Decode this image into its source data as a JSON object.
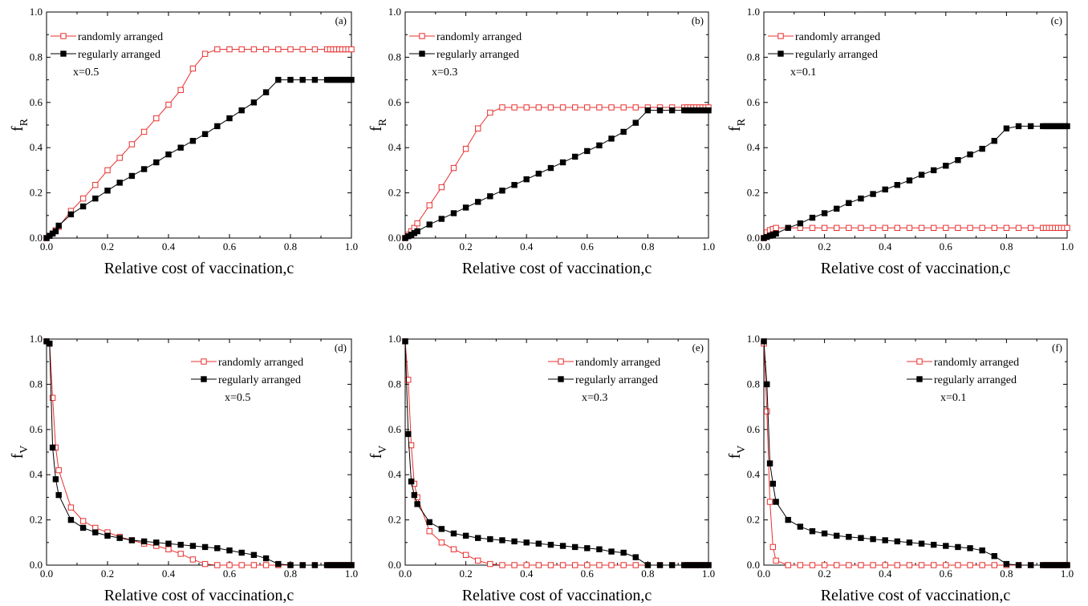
{
  "figure": {
    "xlabel": "Relative cost of vaccination,c",
    "series_names": [
      "randomly arranged",
      "regularly arranged"
    ],
    "series_colors": {
      "randomly": "#e8312f",
      "regularly": "#000000"
    },
    "series_markers": {
      "randomly": "open-square",
      "regularly": "filled-square"
    }
  },
  "chart_data": [
    {
      "type": "line",
      "panel": "(a)",
      "ylabel": "f",
      "ylabel_sub": "R",
      "annotation": "x=0.5",
      "xlim": [
        0,
        1
      ],
      "ylim": [
        0,
        1
      ],
      "xticks": [
        "0.0",
        "0.2",
        "0.4",
        "0.6",
        "0.8",
        "1.0"
      ],
      "yticks": [
        "0.0",
        "0.2",
        "0.4",
        "0.6",
        "0.8",
        "1.0"
      ],
      "legend": "top-left",
      "series": [
        {
          "name": "randomly arranged",
          "x": [
            0.0,
            0.01,
            0.02,
            0.03,
            0.04,
            0.08,
            0.12,
            0.16,
            0.2,
            0.24,
            0.28,
            0.32,
            0.36,
            0.4,
            0.44,
            0.48,
            0.52,
            0.56,
            0.6,
            0.64,
            0.68,
            0.72,
            0.76,
            0.8,
            0.84,
            0.88,
            0.92,
            0.93,
            0.94,
            0.95,
            0.96,
            0.97,
            0.98,
            0.99,
            1.0
          ],
          "y": [
            0.0,
            0.01,
            0.02,
            0.035,
            0.05,
            0.12,
            0.175,
            0.235,
            0.3,
            0.355,
            0.415,
            0.47,
            0.53,
            0.59,
            0.655,
            0.75,
            0.815,
            0.835,
            0.835,
            0.835,
            0.835,
            0.835,
            0.835,
            0.835,
            0.835,
            0.835,
            0.835,
            0.835,
            0.835,
            0.835,
            0.835,
            0.835,
            0.835,
            0.835,
            0.835
          ]
        },
        {
          "name": "regularly arranged",
          "x": [
            0.0,
            0.01,
            0.02,
            0.03,
            0.04,
            0.08,
            0.12,
            0.16,
            0.2,
            0.24,
            0.28,
            0.32,
            0.36,
            0.4,
            0.44,
            0.48,
            0.52,
            0.56,
            0.6,
            0.64,
            0.68,
            0.72,
            0.76,
            0.8,
            0.84,
            0.88,
            0.92,
            0.93,
            0.94,
            0.95,
            0.96,
            0.97,
            0.98,
            0.99,
            1.0
          ],
          "y": [
            0.0,
            0.01,
            0.02,
            0.03,
            0.055,
            0.105,
            0.14,
            0.175,
            0.21,
            0.245,
            0.275,
            0.305,
            0.335,
            0.37,
            0.4,
            0.43,
            0.46,
            0.495,
            0.53,
            0.565,
            0.6,
            0.645,
            0.7,
            0.7,
            0.7,
            0.7,
            0.7,
            0.7,
            0.7,
            0.7,
            0.7,
            0.7,
            0.7,
            0.7,
            0.7
          ]
        }
      ]
    },
    {
      "type": "line",
      "panel": "(b)",
      "ylabel": "f",
      "ylabel_sub": "R",
      "annotation": "x=0.3",
      "xlim": [
        0,
        1
      ],
      "ylim": [
        0,
        1
      ],
      "xticks": [
        "0.0",
        "0.2",
        "0.4",
        "0.6",
        "0.8",
        "1.0"
      ],
      "yticks": [
        "0.0",
        "0.2",
        "0.4",
        "0.6",
        "0.8",
        "1.0"
      ],
      "legend": "top-left",
      "series": [
        {
          "name": "randomly arranged",
          "x": [
            0.0,
            0.01,
            0.02,
            0.03,
            0.04,
            0.08,
            0.12,
            0.16,
            0.2,
            0.24,
            0.28,
            0.32,
            0.36,
            0.4,
            0.44,
            0.48,
            0.52,
            0.56,
            0.6,
            0.64,
            0.68,
            0.72,
            0.76,
            0.8,
            0.84,
            0.88,
            0.92,
            0.93,
            0.94,
            0.95,
            0.96,
            0.97,
            0.98,
            0.99,
            1.0
          ],
          "y": [
            0.0,
            0.015,
            0.03,
            0.045,
            0.065,
            0.145,
            0.225,
            0.31,
            0.395,
            0.485,
            0.555,
            0.578,
            0.578,
            0.578,
            0.578,
            0.578,
            0.578,
            0.578,
            0.578,
            0.578,
            0.578,
            0.578,
            0.578,
            0.578,
            0.578,
            0.578,
            0.578,
            0.578,
            0.578,
            0.578,
            0.578,
            0.578,
            0.578,
            0.578,
            0.578
          ]
        },
        {
          "name": "regularly arranged",
          "x": [
            0.0,
            0.01,
            0.02,
            0.03,
            0.04,
            0.08,
            0.12,
            0.16,
            0.2,
            0.24,
            0.28,
            0.32,
            0.36,
            0.4,
            0.44,
            0.48,
            0.52,
            0.56,
            0.6,
            0.64,
            0.68,
            0.72,
            0.76,
            0.8,
            0.84,
            0.88,
            0.92,
            0.93,
            0.94,
            0.95,
            0.96,
            0.97,
            0.98,
            0.99,
            1.0
          ],
          "y": [
            0.0,
            0.008,
            0.015,
            0.022,
            0.03,
            0.06,
            0.085,
            0.11,
            0.135,
            0.16,
            0.185,
            0.21,
            0.235,
            0.26,
            0.285,
            0.31,
            0.335,
            0.36,
            0.385,
            0.41,
            0.44,
            0.47,
            0.51,
            0.565,
            0.565,
            0.565,
            0.565,
            0.565,
            0.565,
            0.565,
            0.565,
            0.565,
            0.565,
            0.565,
            0.565
          ]
        }
      ]
    },
    {
      "type": "line",
      "panel": "(c)",
      "ylabel": "f",
      "ylabel_sub": "R",
      "annotation": "x=0.1",
      "xlim": [
        0,
        1
      ],
      "ylim": [
        0,
        1
      ],
      "xticks": [
        "0.0",
        "0.2",
        "0.4",
        "0.6",
        "0.8",
        "1.0"
      ],
      "yticks": [
        "0.0",
        "0.2",
        "0.4",
        "0.6",
        "0.8",
        "1.0"
      ],
      "legend": "top-left",
      "series": [
        {
          "name": "randomly arranged",
          "x": [
            0.0,
            0.01,
            0.02,
            0.03,
            0.04,
            0.08,
            0.12,
            0.16,
            0.2,
            0.24,
            0.28,
            0.32,
            0.36,
            0.4,
            0.44,
            0.48,
            0.52,
            0.56,
            0.6,
            0.64,
            0.68,
            0.72,
            0.76,
            0.8,
            0.84,
            0.88,
            0.92,
            0.93,
            0.94,
            0.95,
            0.96,
            0.97,
            0.98,
            0.99,
            1.0
          ],
          "y": [
            0.0,
            0.025,
            0.035,
            0.04,
            0.045,
            0.045,
            0.045,
            0.045,
            0.045,
            0.045,
            0.045,
            0.045,
            0.045,
            0.045,
            0.045,
            0.045,
            0.045,
            0.045,
            0.045,
            0.045,
            0.045,
            0.045,
            0.045,
            0.045,
            0.045,
            0.045,
            0.045,
            0.045,
            0.045,
            0.045,
            0.045,
            0.045,
            0.045,
            0.045,
            0.045
          ]
        },
        {
          "name": "regularly arranged",
          "x": [
            0.0,
            0.01,
            0.02,
            0.03,
            0.04,
            0.08,
            0.12,
            0.16,
            0.2,
            0.24,
            0.28,
            0.32,
            0.36,
            0.4,
            0.44,
            0.48,
            0.52,
            0.56,
            0.6,
            0.64,
            0.68,
            0.72,
            0.76,
            0.8,
            0.84,
            0.88,
            0.92,
            0.93,
            0.94,
            0.95,
            0.96,
            0.97,
            0.98,
            0.99,
            1.0
          ],
          "y": [
            0.0,
            0.005,
            0.01,
            0.015,
            0.02,
            0.045,
            0.065,
            0.09,
            0.11,
            0.13,
            0.155,
            0.175,
            0.195,
            0.215,
            0.235,
            0.255,
            0.28,
            0.3,
            0.32,
            0.345,
            0.37,
            0.395,
            0.43,
            0.485,
            0.495,
            0.495,
            0.495,
            0.495,
            0.495,
            0.495,
            0.495,
            0.495,
            0.495,
            0.495,
            0.495
          ]
        }
      ]
    },
    {
      "type": "line",
      "panel": "(d)",
      "ylabel": "f",
      "ylabel_sub": "V",
      "annotation": "x=0.5",
      "xlim": [
        0,
        1
      ],
      "ylim": [
        0,
        1
      ],
      "xticks": [
        "0.0",
        "0.2",
        "0.4",
        "0.6",
        "0.8",
        "1.0"
      ],
      "yticks": [
        "0.0",
        "0.2",
        "0.4",
        "0.6",
        "0.8",
        "1.0"
      ],
      "legend": "top-right",
      "series": [
        {
          "name": "randomly arranged",
          "x": [
            0.0,
            0.01,
            0.02,
            0.03,
            0.04,
            0.08,
            0.12,
            0.16,
            0.2,
            0.24,
            0.28,
            0.32,
            0.36,
            0.4,
            0.44,
            0.48,
            0.52,
            0.56,
            0.6,
            0.64,
            0.68,
            0.72,
            0.76,
            0.8,
            0.84,
            0.88,
            0.92,
            0.93,
            0.94,
            0.95,
            0.96,
            0.97,
            0.98,
            0.99,
            1.0
          ],
          "y": [
            0.99,
            0.98,
            0.74,
            0.52,
            0.42,
            0.255,
            0.195,
            0.165,
            0.145,
            0.125,
            0.11,
            0.095,
            0.085,
            0.07,
            0.05,
            0.025,
            0.005,
            0.0,
            0.0,
            0.0,
            0.0,
            0.0,
            0.0,
            0.0,
            0.0,
            0.0,
            0.0,
            0.0,
            0.0,
            0.0,
            0.0,
            0.0,
            0.0,
            0.0,
            0.0
          ]
        },
        {
          "name": "regularly arranged",
          "x": [
            0.0,
            0.01,
            0.02,
            0.03,
            0.04,
            0.08,
            0.12,
            0.16,
            0.2,
            0.24,
            0.28,
            0.32,
            0.36,
            0.4,
            0.44,
            0.48,
            0.52,
            0.56,
            0.6,
            0.64,
            0.68,
            0.72,
            0.76,
            0.8,
            0.84,
            0.88,
            0.92,
            0.93,
            0.94,
            0.95,
            0.96,
            0.97,
            0.98,
            0.99,
            1.0
          ],
          "y": [
            0.99,
            0.98,
            0.52,
            0.38,
            0.31,
            0.2,
            0.165,
            0.145,
            0.13,
            0.12,
            0.11,
            0.105,
            0.1,
            0.095,
            0.09,
            0.085,
            0.08,
            0.075,
            0.065,
            0.055,
            0.045,
            0.03,
            0.005,
            0.0,
            0.0,
            0.0,
            0.0,
            0.0,
            0.0,
            0.0,
            0.0,
            0.0,
            0.0,
            0.0,
            0.0
          ]
        }
      ]
    },
    {
      "type": "line",
      "panel": "(e)",
      "ylabel": "f",
      "ylabel_sub": "V",
      "annotation": "x=0.3",
      "xlim": [
        0,
        1
      ],
      "ylim": [
        0,
        1
      ],
      "xticks": [
        "0.0",
        "0.2",
        "0.4",
        "0.6",
        "0.8",
        "1.0"
      ],
      "yticks": [
        "0.0",
        "0.2",
        "0.4",
        "0.6",
        "0.8",
        "1.0"
      ],
      "legend": "top-right",
      "series": [
        {
          "name": "randomly arranged",
          "x": [
            0.0,
            0.01,
            0.02,
            0.03,
            0.04,
            0.08,
            0.12,
            0.16,
            0.2,
            0.24,
            0.28,
            0.32,
            0.36,
            0.4,
            0.44,
            0.48,
            0.52,
            0.56,
            0.6,
            0.64,
            0.68,
            0.72,
            0.76,
            0.8,
            0.84,
            0.88,
            0.92,
            0.93,
            0.94,
            0.95,
            0.96,
            0.97,
            0.98,
            0.99,
            1.0
          ],
          "y": [
            0.99,
            0.82,
            0.53,
            0.36,
            0.3,
            0.15,
            0.1,
            0.07,
            0.045,
            0.02,
            0.005,
            0.0,
            0.0,
            0.0,
            0.0,
            0.0,
            0.0,
            0.0,
            0.0,
            0.0,
            0.0,
            0.0,
            0.0,
            0.0,
            0.0,
            0.0,
            0.0,
            0.0,
            0.0,
            0.0,
            0.0,
            0.0,
            0.0,
            0.0,
            0.0
          ]
        },
        {
          "name": "regularly arranged",
          "x": [
            0.0,
            0.01,
            0.02,
            0.03,
            0.04,
            0.08,
            0.12,
            0.16,
            0.2,
            0.24,
            0.28,
            0.32,
            0.36,
            0.4,
            0.44,
            0.48,
            0.52,
            0.56,
            0.6,
            0.64,
            0.68,
            0.72,
            0.76,
            0.8,
            0.84,
            0.88,
            0.92,
            0.93,
            0.94,
            0.95,
            0.96,
            0.97,
            0.98,
            0.99,
            1.0
          ],
          "y": [
            0.99,
            0.58,
            0.37,
            0.31,
            0.27,
            0.19,
            0.16,
            0.14,
            0.13,
            0.12,
            0.115,
            0.11,
            0.105,
            0.1,
            0.095,
            0.09,
            0.085,
            0.08,
            0.075,
            0.07,
            0.06,
            0.055,
            0.035,
            0.0,
            0.0,
            0.0,
            0.0,
            0.0,
            0.0,
            0.0,
            0.0,
            0.0,
            0.0,
            0.0,
            0.0
          ]
        }
      ]
    },
    {
      "type": "line",
      "panel": "(f)",
      "ylabel": "f",
      "ylabel_sub": "V",
      "annotation": "x=0.1",
      "xlim": [
        0,
        1
      ],
      "ylim": [
        0,
        1
      ],
      "xticks": [
        "0.0",
        "0.2",
        "0.4",
        "0.6",
        "0.8",
        "1.0"
      ],
      "yticks": [
        "0.0",
        "0.2",
        "0.4",
        "0.6",
        "0.8",
        "1.0"
      ],
      "legend": "top-right",
      "series": [
        {
          "name": "randomly arranged",
          "x": [
            0.0,
            0.01,
            0.02,
            0.03,
            0.04,
            0.08,
            0.12,
            0.16,
            0.2,
            0.24,
            0.28,
            0.32,
            0.36,
            0.4,
            0.44,
            0.48,
            0.52,
            0.56,
            0.6,
            0.64,
            0.68,
            0.72,
            0.76,
            0.8,
            0.84,
            0.88,
            0.92,
            0.93,
            0.94,
            0.95,
            0.96,
            0.97,
            0.98,
            0.99,
            1.0
          ],
          "y": [
            0.98,
            0.68,
            0.28,
            0.08,
            0.02,
            0.0,
            0.0,
            0.0,
            0.0,
            0.0,
            0.0,
            0.0,
            0.0,
            0.0,
            0.0,
            0.0,
            0.0,
            0.0,
            0.0,
            0.0,
            0.0,
            0.0,
            0.0,
            0.0,
            0.0,
            0.0,
            0.0,
            0.0,
            0.0,
            0.0,
            0.0,
            0.0,
            0.0,
            0.0,
            0.0
          ]
        },
        {
          "name": "regularly arranged",
          "x": [
            0.0,
            0.01,
            0.02,
            0.03,
            0.04,
            0.08,
            0.12,
            0.16,
            0.2,
            0.24,
            0.28,
            0.32,
            0.36,
            0.4,
            0.44,
            0.48,
            0.52,
            0.56,
            0.6,
            0.64,
            0.68,
            0.72,
            0.76,
            0.8,
            0.84,
            0.88,
            0.92,
            0.93,
            0.94,
            0.95,
            0.96,
            0.97,
            0.98,
            0.99,
            1.0
          ],
          "y": [
            0.99,
            0.8,
            0.45,
            0.36,
            0.28,
            0.2,
            0.17,
            0.15,
            0.14,
            0.13,
            0.125,
            0.12,
            0.115,
            0.11,
            0.105,
            0.1,
            0.095,
            0.09,
            0.085,
            0.08,
            0.075,
            0.065,
            0.04,
            0.005,
            0.0,
            0.0,
            0.0,
            0.0,
            0.0,
            0.0,
            0.0,
            0.0,
            0.0,
            0.0,
            0.0
          ]
        }
      ]
    }
  ]
}
